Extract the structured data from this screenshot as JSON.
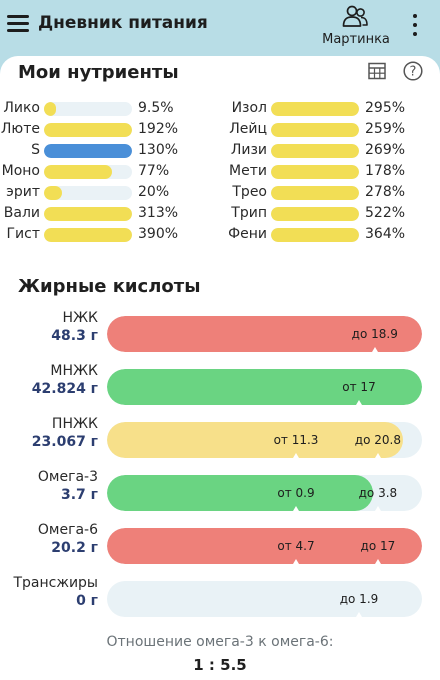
{
  "header": {
    "title": "Дневник питания",
    "menu_icon": "hamburger-icon",
    "profile_icon": "users-icon",
    "profile_label": "Мартинка",
    "more_icon": "more-vertical-icon"
  },
  "nutrients": {
    "title": "Мои нутриенты",
    "table_icon": "table-icon",
    "help_icon": "help-icon",
    "left": [
      {
        "name": "Лико",
        "pct": "9.5%",
        "value": 0.095,
        "color": "#f2de55"
      },
      {
        "name": "Люте",
        "pct": "192%",
        "value": 1.92,
        "color": "#f2de55"
      },
      {
        "name": "S",
        "pct": "130%",
        "value": 1.3,
        "color": "#4a8fd8"
      },
      {
        "name": "Моно",
        "pct": "77%",
        "value": 0.77,
        "color": "#f2de55"
      },
      {
        "name": "эрит",
        "pct": "20%",
        "value": 0.2,
        "color": "#f2de55"
      },
      {
        "name": "Вали",
        "pct": "313%",
        "value": 3.13,
        "color": "#f2de55"
      },
      {
        "name": "Гист",
        "pct": "390%",
        "value": 3.9,
        "color": "#f2de55"
      }
    ],
    "right": [
      {
        "name": "Изол",
        "pct": "295%",
        "value": 2.95,
        "color": "#f2de55"
      },
      {
        "name": "Лейц",
        "pct": "259%",
        "value": 2.59,
        "color": "#f2de55"
      },
      {
        "name": "Лизи",
        "pct": "269%",
        "value": 2.69,
        "color": "#f2de55"
      },
      {
        "name": "Мети",
        "pct": "178%",
        "value": 1.78,
        "color": "#f2de55"
      },
      {
        "name": "Трео",
        "pct": "278%",
        "value": 2.78,
        "color": "#f2de55"
      },
      {
        "name": "Трип",
        "pct": "522%",
        "value": 5.22,
        "color": "#f2de55"
      },
      {
        "name": "Фени",
        "pct": "364%",
        "value": 3.64,
        "color": "#f2de55"
      }
    ]
  },
  "fatty_acids": {
    "title": "Жирные кислоты",
    "rows": [
      {
        "name": "НЖК",
        "value": "48.3 г",
        "fill": 1.0,
        "color": "#ee8079",
        "markers": [
          {
            "label": "до 18.9",
            "pos": 0.85
          }
        ]
      },
      {
        "name": "МНЖК",
        "value": "42.824 г",
        "fill": 1.0,
        "color": "#6ad482",
        "markers": [
          {
            "label": "от 17",
            "pos": 0.8
          }
        ]
      },
      {
        "name": "ПНЖК",
        "value": "23.067 г",
        "fill": 0.94,
        "color": "#f7e08a",
        "markers": [
          {
            "label": "от 11.3",
            "pos": 0.6
          },
          {
            "label": "до 20.8",
            "pos": 0.86
          }
        ]
      },
      {
        "name": "Омега-3",
        "value": "3.7 г",
        "fill": 0.845,
        "color": "#6ad482",
        "markers": [
          {
            "label": "от 0.9",
            "pos": 0.6
          },
          {
            "label": "до 3.8",
            "pos": 0.86
          }
        ]
      },
      {
        "name": "Омега-6",
        "value": "20.2 г",
        "fill": 1.0,
        "color": "#ee8079",
        "markers": [
          {
            "label": "от 4.7",
            "pos": 0.6
          },
          {
            "label": "до 17",
            "pos": 0.86
          }
        ]
      },
      {
        "name": "Трансжиры",
        "value": "0 г",
        "fill": 0.0,
        "color": "#e9f2f6",
        "markers": [
          {
            "label": "до 1.9",
            "pos": 0.8
          }
        ]
      }
    ]
  },
  "ratio": {
    "label": "Отношение омега-3 к омега-6:",
    "value": "1 : 5.5"
  }
}
